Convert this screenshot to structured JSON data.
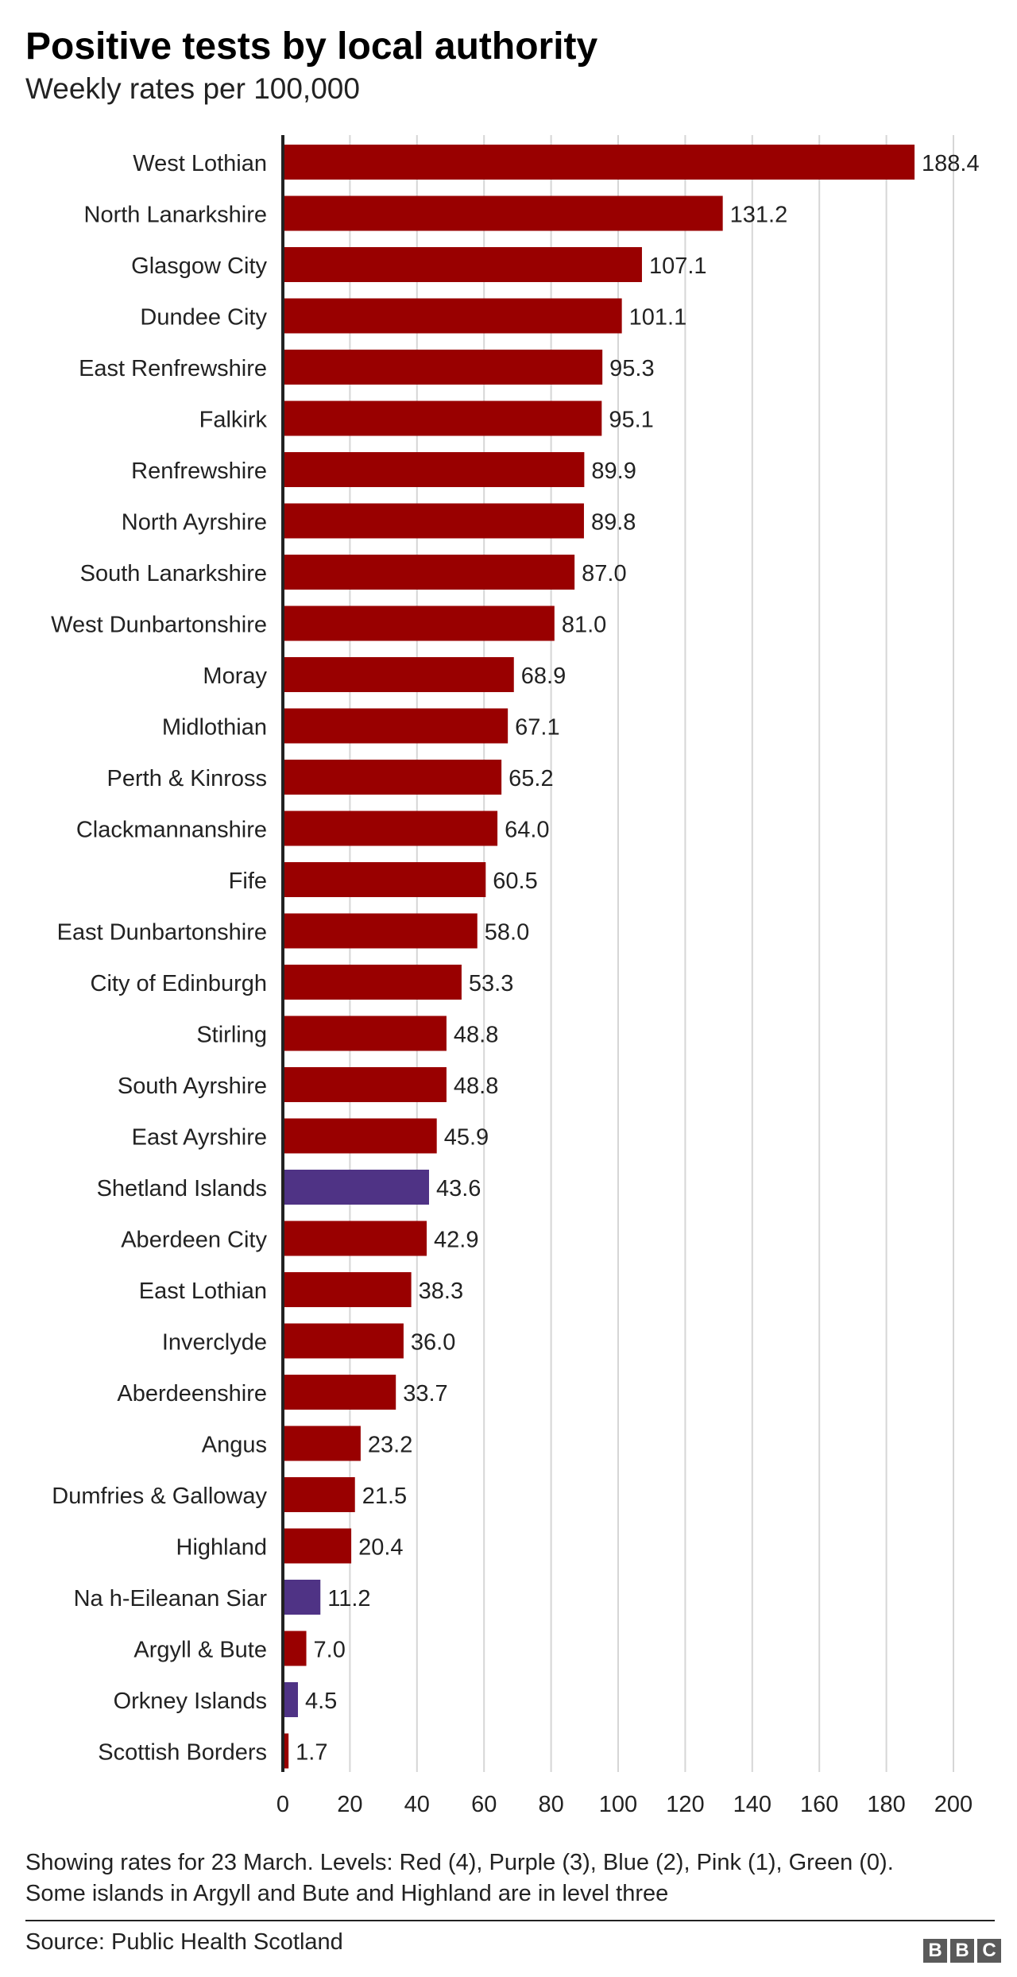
{
  "header": {
    "title": "Positive tests by local authority",
    "subtitle": "Weekly rates per 100,000"
  },
  "footer": {
    "note_line1": "Showing rates for 23 March. Levels: Red (4), Purple (3), Blue (2), Pink (1), Green (0).",
    "note_line2": "Some islands in Argyll and Bute and Highland are in level three",
    "source": "Source: Public Health Scotland",
    "logo": [
      "B",
      "B",
      "C"
    ]
  },
  "colors": {
    "red_level": "#990000",
    "purple_level": "#4f3385",
    "gridline": "#d6d6d6",
    "axis": "#222222"
  },
  "chart_data": {
    "type": "bar",
    "orientation": "horizontal",
    "title": "Positive tests by local authority",
    "subtitle": "Weekly rates per 100,000",
    "xlabel": "",
    "ylabel": "",
    "xlim": [
      0,
      200
    ],
    "xticks": [
      0,
      20,
      40,
      60,
      80,
      100,
      120,
      140,
      160,
      180,
      200
    ],
    "grid": "vertical",
    "categories": [
      "West Lothian",
      "North Lanarkshire",
      "Glasgow City",
      "Dundee City",
      "East Renfrewshire",
      "Falkirk",
      "Renfrewshire",
      "North Ayrshire",
      "South Lanarkshire",
      "West Dunbartonshire",
      "Moray",
      "Midlothian",
      "Perth & Kinross",
      "Clackmannanshire",
      "Fife",
      "East Dunbartonshire",
      "City of Edinburgh",
      "Stirling",
      "South Ayrshire",
      "East Ayrshire",
      "Shetland Islands",
      "Aberdeen City",
      "East Lothian",
      "Inverclyde",
      "Aberdeenshire",
      "Angus",
      "Dumfries & Galloway",
      "Highland",
      "Na h-Eileanan Siar",
      "Argyll & Bute",
      "Orkney Islands",
      "Scottish Borders"
    ],
    "values": [
      188.4,
      131.2,
      107.1,
      101.1,
      95.3,
      95.1,
      89.9,
      89.8,
      87.0,
      81.0,
      68.9,
      67.1,
      65.2,
      64.0,
      60.5,
      58.0,
      53.3,
      48.8,
      48.8,
      45.9,
      43.6,
      42.9,
      38.3,
      36.0,
      33.7,
      23.2,
      21.5,
      20.4,
      11.2,
      7.0,
      4.5,
      1.7
    ],
    "value_labels": [
      "188.4",
      "131.2",
      "107.1",
      "101.1",
      "95.3",
      "95.1",
      "89.9",
      "89.8",
      "87.0",
      "81.0",
      "68.9",
      "67.1",
      "65.2",
      "64.0",
      "60.5",
      "58.0",
      "53.3",
      "48.8",
      "48.8",
      "45.9",
      "43.6",
      "42.9",
      "38.3",
      "36.0",
      "33.7",
      "23.2",
      "21.5",
      "20.4",
      "11.2",
      "7.0",
      "4.5",
      "1.7"
    ],
    "levels": [
      "red",
      "red",
      "red",
      "red",
      "red",
      "red",
      "red",
      "red",
      "red",
      "red",
      "red",
      "red",
      "red",
      "red",
      "red",
      "red",
      "red",
      "red",
      "red",
      "red",
      "purple",
      "red",
      "red",
      "red",
      "red",
      "red",
      "red",
      "red",
      "purple",
      "red",
      "purple",
      "red"
    ]
  }
}
